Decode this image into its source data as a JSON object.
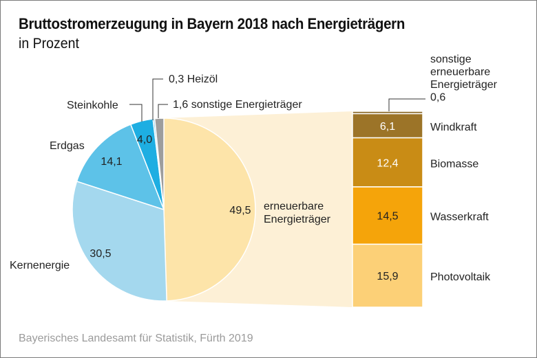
{
  "header": {
    "title": "Bruttostromerzeugung in Bayern 2018 nach Energieträgern",
    "subtitle": "in Prozent"
  },
  "footer": {
    "source": "Bayerisches Landesamt für Statistik, Fürth 2019"
  },
  "chart_data": [
    {
      "type": "pie",
      "title": "Bruttostromerzeugung in Bayern 2018 nach Energieträgern",
      "subtitle": "in Prozent",
      "unit": "%",
      "start": "top, clockwise",
      "slices": [
        {
          "name": "erneuerbare Energieträger",
          "value": 49.5,
          "value_label": "49,5",
          "label_lines": [
            "erneuerbare",
            "Energieträger"
          ],
          "color": "#fde4a9"
        },
        {
          "name": "Kernenergie",
          "value": 30.5,
          "value_label": "30,5",
          "label_lines": [
            "Kernenergie"
          ],
          "color": "#a4d8ee"
        },
        {
          "name": "Erdgas",
          "value": 14.1,
          "value_label": "14,1",
          "label_lines": [
            "Erdgas"
          ],
          "color": "#5dc2e8"
        },
        {
          "name": "Steinkohle",
          "value": 4.0,
          "value_label": "4,0",
          "label_lines": [
            "Steinkohle"
          ],
          "color": "#1eaee2"
        },
        {
          "name": "Heizöl",
          "value": 0.3,
          "value_label": "0,3",
          "label_lines": [
            "0,3 Heizöl"
          ],
          "color": "#7fcbe9"
        },
        {
          "name": "sonstige Energieträger",
          "value": 1.6,
          "value_label": "1,6",
          "label_lines": [
            "1,6 sonstige Energieträger"
          ],
          "color": "#9d9d9d"
        }
      ]
    },
    {
      "type": "bar",
      "stacked": true,
      "title": "erneuerbare Energieträger (Aufschlüsselung)",
      "unit": "%",
      "total": 49.5,
      "categories": [
        "sonstige erneuerbare Energieträger",
        "Windkraft",
        "Biomasse",
        "Wasserkraft",
        "Photovoltaik"
      ],
      "series": [
        {
          "name": "sonstige erneuerbare Energieträger",
          "value": 0.6,
          "value_label": "0,6",
          "label_lines": [
            "sonstige",
            "erneuerbare",
            "Energieträger",
            "0,6"
          ],
          "color": "#8c6a2a"
        },
        {
          "name": "Windkraft",
          "value": 6.1,
          "value_label": "6,1",
          "label_lines": [
            "Windkraft"
          ],
          "color": "#9c7428",
          "text_color": "#ffffff"
        },
        {
          "name": "Biomasse",
          "value": 12.4,
          "value_label": "12,4",
          "label_lines": [
            "Biomasse"
          ],
          "color": "#c98c15",
          "text_color": "#ffffff"
        },
        {
          "name": "Wasserkraft",
          "value": 14.5,
          "value_label": "14,5",
          "label_lines": [
            "Wasserkraft"
          ],
          "color": "#f5a40a",
          "text_color": "#222222"
        },
        {
          "name": "Photovoltaik",
          "value": 15.9,
          "value_label": "15,9",
          "label_lines": [
            "Photovoltaik"
          ],
          "color": "#fcd077",
          "text_color": "#222222"
        }
      ]
    }
  ],
  "colors": {
    "connector": "#fdf0d6",
    "leader_line": "#333333",
    "text": "#222222",
    "source_text": "#9a9a9a"
  }
}
